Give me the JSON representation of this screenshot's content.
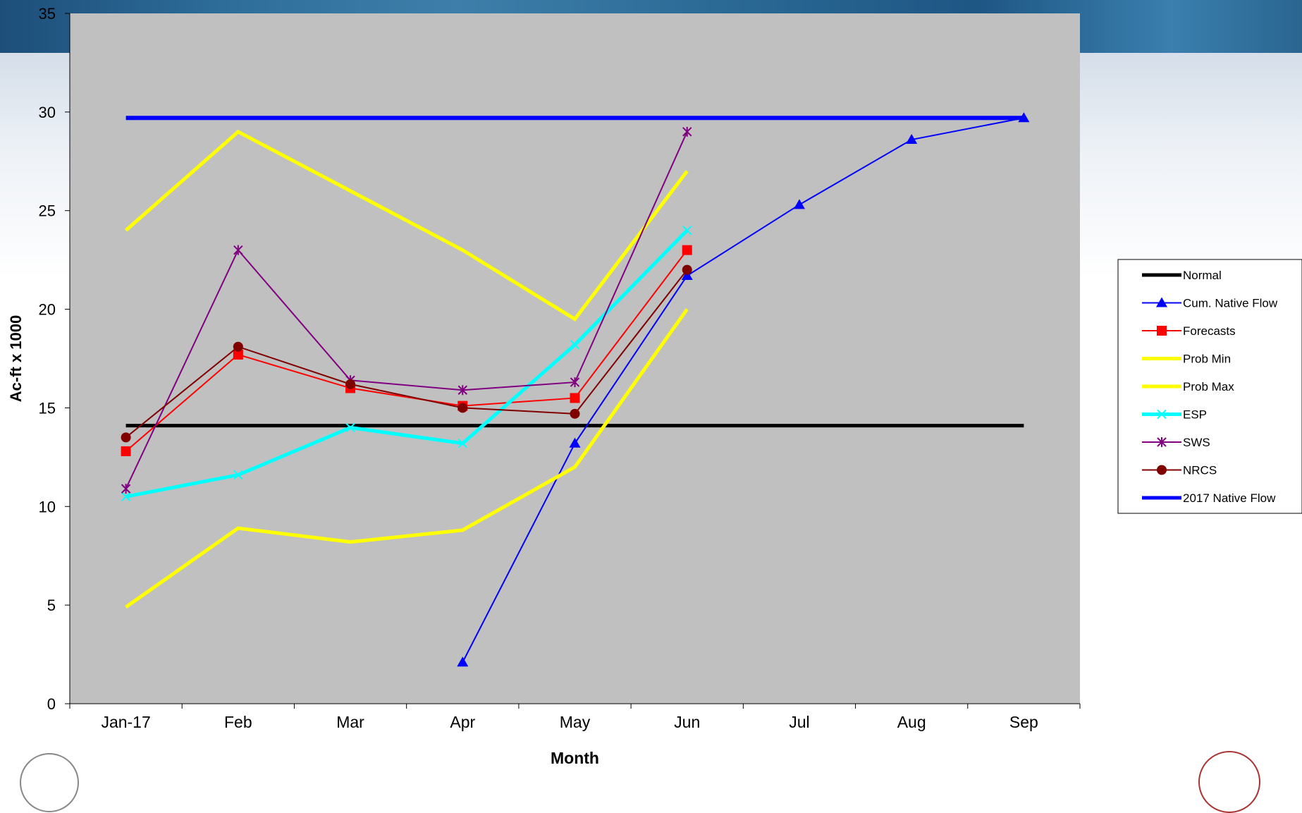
{
  "chart_data": {
    "type": "line",
    "xlabel": "Month",
    "ylabel": "Ac-ft x 1000",
    "ylim": [
      0,
      35
    ],
    "yticks": [
      "0",
      "5",
      "10",
      "15",
      "20",
      "25",
      "30",
      "35"
    ],
    "categories": [
      "Jan-17",
      "Feb",
      "Mar",
      "Apr",
      "May",
      "Jun",
      "Jul",
      "Aug",
      "Sep"
    ],
    "legend_position": "right",
    "plot_background": "#c0c0c0",
    "series": [
      {
        "name": "Normal",
        "color": "#000000",
        "marker": "none",
        "values": [
          14.1,
          14.1,
          14.1,
          14.1,
          14.1,
          14.1,
          14.1,
          14.1,
          14.1
        ]
      },
      {
        "name": "Cum. Native Flow",
        "color": "#0000ff",
        "marker": "triangle",
        "values": [
          null,
          null,
          null,
          2.1,
          13.2,
          21.7,
          25.3,
          28.6,
          29.7
        ]
      },
      {
        "name": "Forecasts",
        "color": "#ff0000",
        "marker": "square",
        "values": [
          12.8,
          17.7,
          16.0,
          15.1,
          15.5,
          23.0,
          null,
          null,
          null
        ]
      },
      {
        "name": "Prob Min",
        "color": "#ffff00",
        "marker": "none",
        "values": [
          4.9,
          8.9,
          8.2,
          8.8,
          12.0,
          20.0,
          null,
          null,
          null
        ]
      },
      {
        "name": "Prob Max",
        "color": "#ffff00",
        "marker": "none",
        "values": [
          24.0,
          29.0,
          26.0,
          23.0,
          19.5,
          27.0,
          null,
          null,
          null
        ]
      },
      {
        "name": "ESP",
        "color": "#00ffff",
        "marker": "x",
        "values": [
          10.5,
          11.6,
          14.0,
          13.2,
          18.2,
          24.0,
          null,
          null,
          null
        ]
      },
      {
        "name": "SWS",
        "color": "#800080",
        "marker": "star",
        "values": [
          10.9,
          23.0,
          16.4,
          15.9,
          16.3,
          29.0,
          null,
          null,
          null
        ]
      },
      {
        "name": "NRCS",
        "color": "#800000",
        "marker": "circle",
        "values": [
          13.5,
          18.1,
          16.2,
          15.0,
          14.7,
          22.0,
          null,
          null,
          null
        ]
      },
      {
        "name": "2017 Native Flow",
        "color": "#0000ff",
        "marker": "none",
        "values": [
          29.7,
          29.7,
          29.7,
          29.7,
          29.7,
          29.7,
          29.7,
          29.7,
          29.7
        ]
      }
    ]
  }
}
